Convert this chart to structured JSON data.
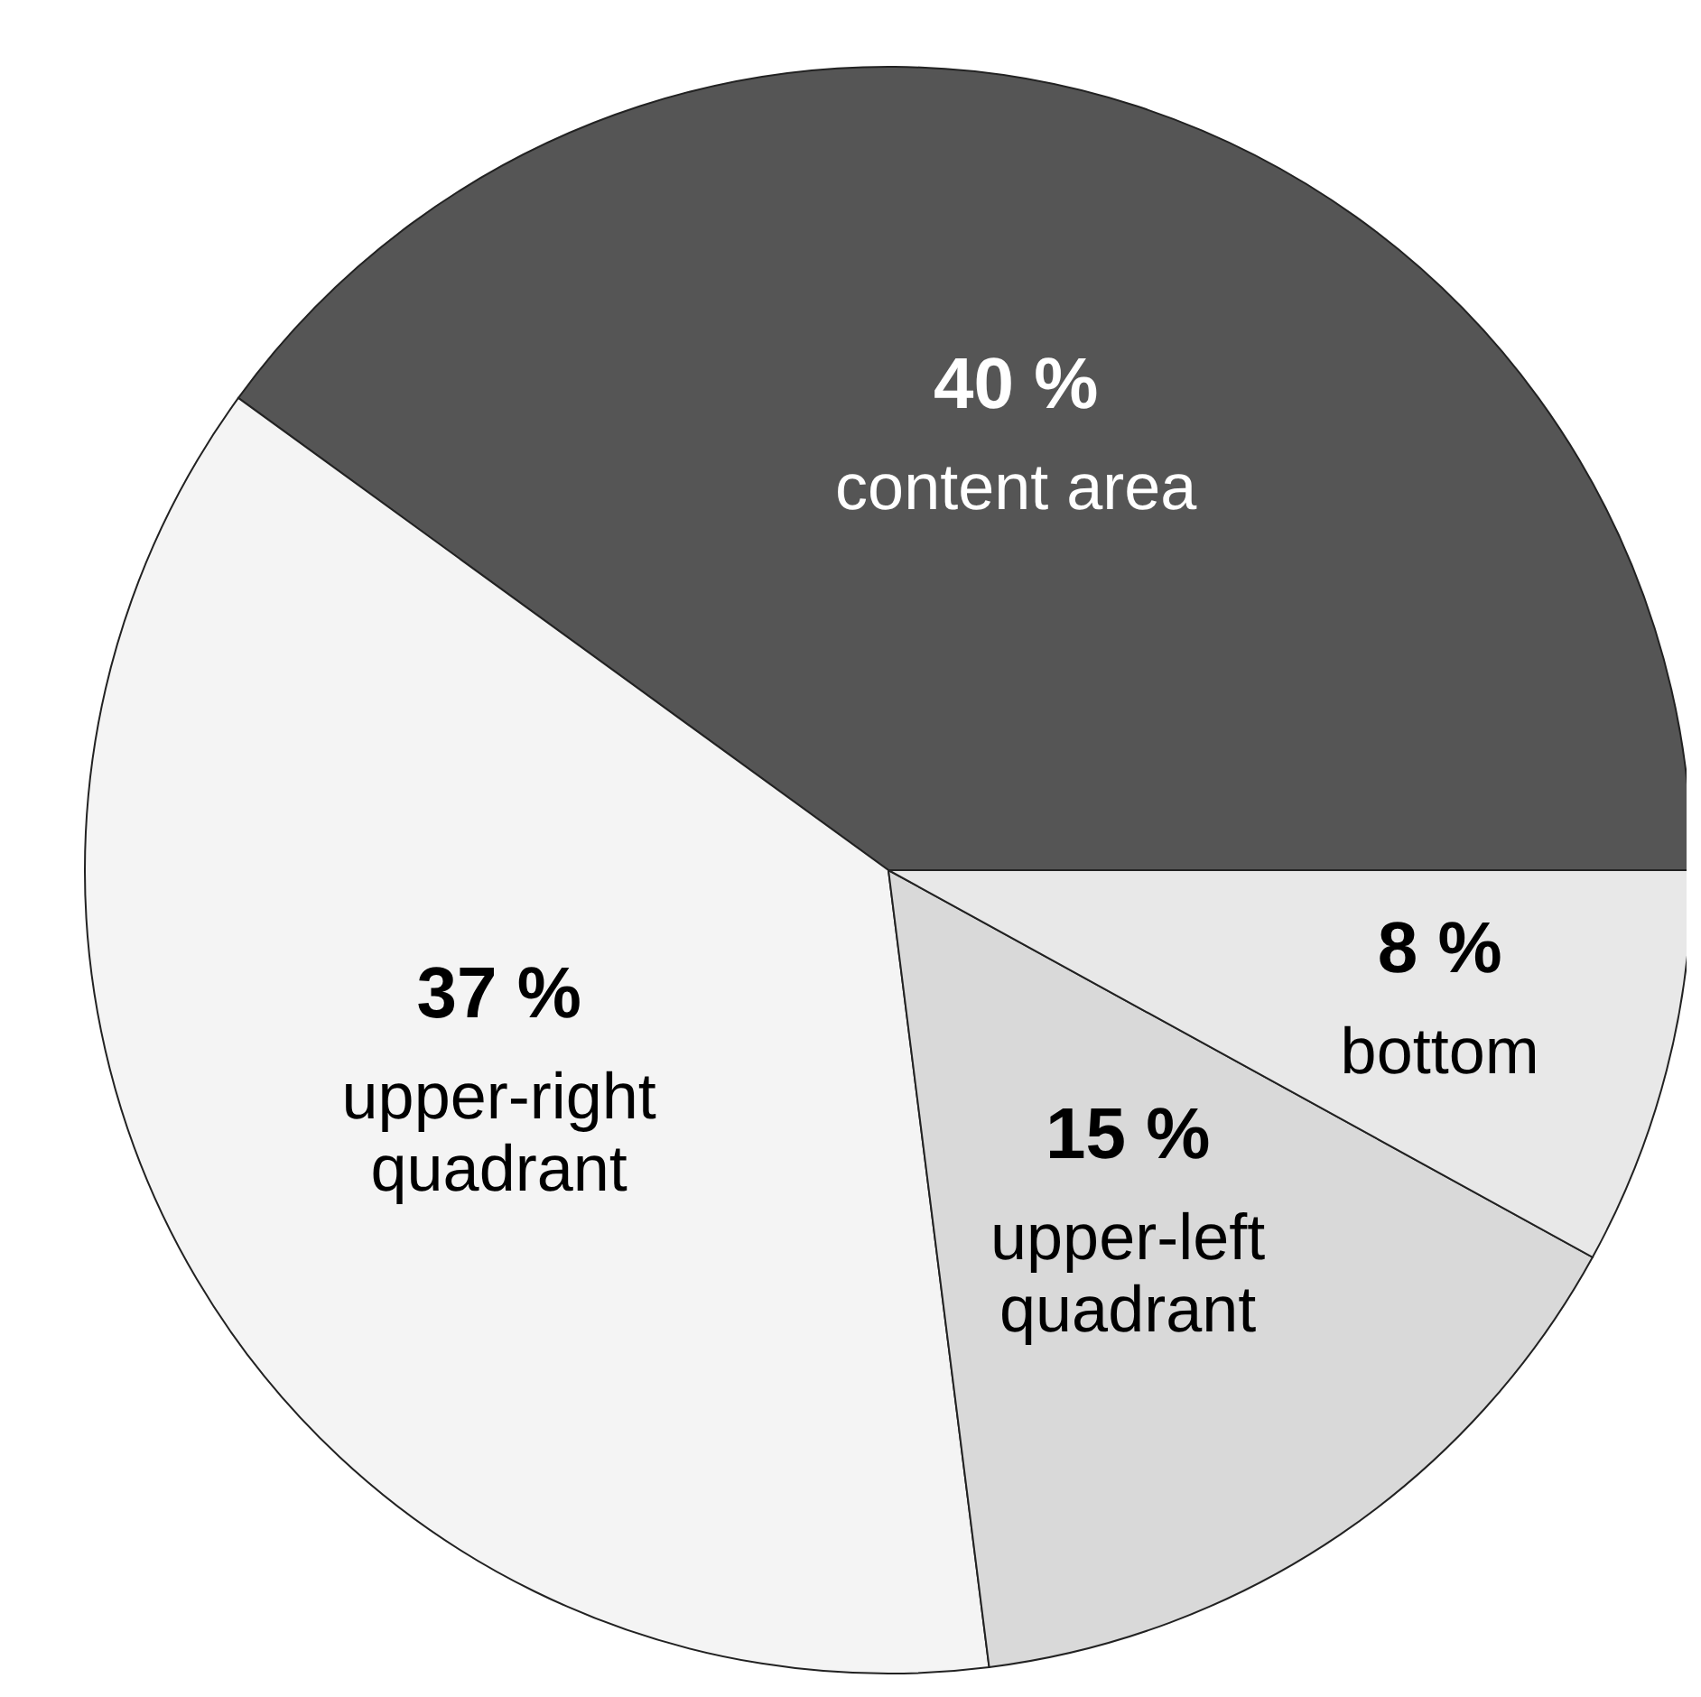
{
  "chart_data": {
    "type": "pie",
    "categories": [
      "content area",
      "upper-right quadrant",
      "upper-left quadrant",
      "bottom"
    ],
    "values": [
      40,
      37,
      15,
      8
    ],
    "colors": [
      "#555555",
      "#f4f4f4",
      "#d9d9d9",
      "#e8e8e8"
    ],
    "value_labels": [
      "40 %",
      "37 %",
      "15 %",
      "8 %"
    ],
    "legend": false
  }
}
